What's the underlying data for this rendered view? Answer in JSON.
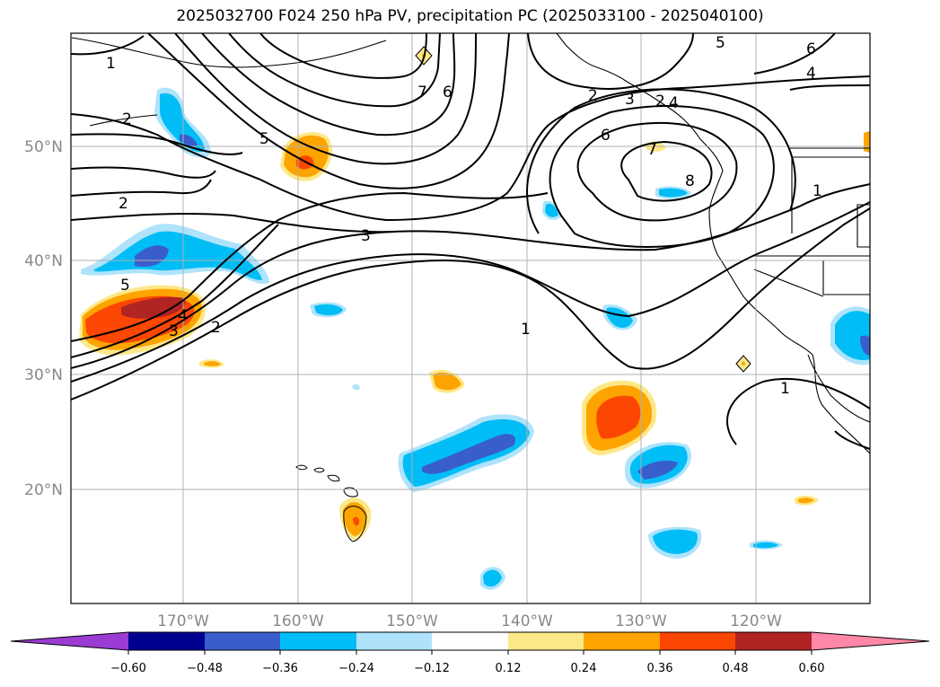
{
  "title": "2025032700 F024 250 hPa PV, precipitation PC (2025033100 - 2025040100)",
  "lat_labels": [
    "50°N",
    "40°N",
    "30°N",
    "20°N"
  ],
  "lon_labels": [
    "170°W",
    "160°W",
    "150°W",
    "140°W",
    "130°W",
    "120°W"
  ],
  "colorbar": {
    "colors": [
      "#9a3bd3",
      "#000090",
      "#3a5dcc",
      "#00bdf6",
      "#aee3fb",
      "#ffffff",
      "#fde888",
      "#fda400",
      "#fc4603",
      "#b12424",
      "#ff88a8"
    ],
    "tick_labels": [
      "−0.60",
      "−0.48",
      "−0.36",
      "−0.24",
      "−0.12",
      "0.12",
      "0.24",
      "0.36",
      "0.48",
      "0.60"
    ]
  },
  "contour_labels": [
    "1",
    "2",
    "2",
    "5",
    "2",
    "3",
    "5",
    "4",
    "3",
    "2",
    "1",
    "7",
    "6",
    "2",
    "3",
    "4",
    "6",
    "7",
    "8",
    "5",
    "6",
    "4",
    "1",
    "1"
  ]
}
